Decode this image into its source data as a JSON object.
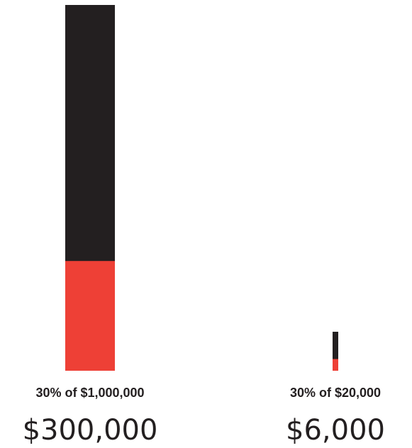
{
  "chart_data": {
    "type": "bar",
    "subtype": "stacked-proportion",
    "colors": {
      "total": "#231f20",
      "share": "#ee4036"
    },
    "percentage": 0.3,
    "items": [
      {
        "total": 1000000,
        "share_value": 300000,
        "caption": "30% of $1,000,000",
        "amount": "$300,000"
      },
      {
        "total": 20000,
        "share_value": 6000,
        "caption": "30% of $20,000",
        "amount": "$6,000"
      }
    ]
  }
}
